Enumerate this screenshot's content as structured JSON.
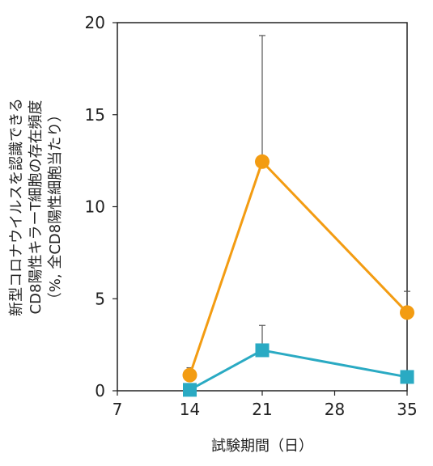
{
  "chart_data": {
    "type": "line",
    "xlabel": "試験期間（日）",
    "ylabel_lines": [
      "新型コロナウイルスを認識できる",
      "CD8陽性キラーT細胞の存在頻度",
      "（%, 全CD8陽性細胞当たり）"
    ],
    "xlim": [
      7,
      35
    ],
    "ylim": [
      0,
      20
    ],
    "xticks": [
      7,
      14,
      21,
      28,
      35
    ],
    "yticks": [
      0,
      5,
      10,
      15,
      20
    ],
    "grid": false,
    "series": [
      {
        "marker": "circle",
        "color": "#F39C12",
        "x": [
          14,
          21,
          35
        ],
        "y": [
          0.85,
          12.45,
          4.25
        ],
        "err_upper": [
          0.4,
          6.85,
          1.15
        ]
      },
      {
        "marker": "square",
        "color": "#2AAAC3",
        "x": [
          14,
          21,
          35
        ],
        "y": [
          0.05,
          2.2,
          0.75
        ],
        "err_upper": [
          0.1,
          1.35,
          0.1
        ]
      }
    ]
  }
}
